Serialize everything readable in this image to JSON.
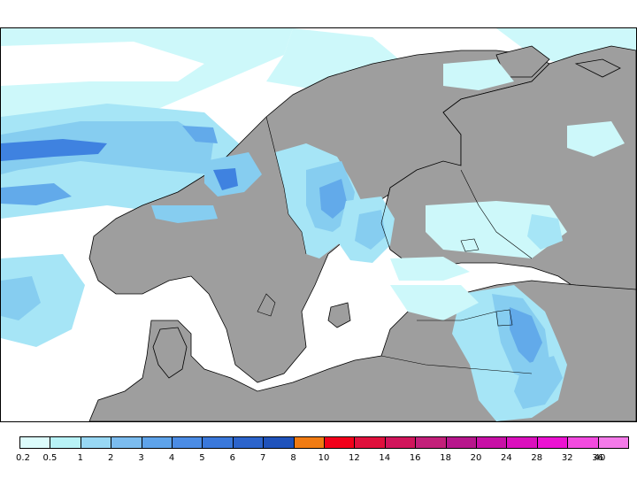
{
  "colors": {
    "land": "#9e9e9e",
    "sea": "#ffffff",
    "coast": "#000000",
    "precip_light": "#cdf8fa",
    "precip_1": "#a6e5f6",
    "precip_2": "#86cdf0",
    "precip_3": "#62aaea",
    "precip_5": "#3f82e0",
    "precip_7": "#1e5fc9"
  },
  "legend": {
    "colors": [
      "#dcfcfc",
      "#b8f3f7",
      "#98d8f4",
      "#7bbcef",
      "#5ea3ea",
      "#4b8ce5",
      "#3a78db",
      "#2c64cc",
      "#1f52bb",
      "#f07b12",
      "#f2001a",
      "#e0103c",
      "#d1155b",
      "#c3207a",
      "#b7168c",
      "#c810a6",
      "#db10bd",
      "#ec12d2",
      "#f34be0",
      "#f47ae9"
    ],
    "labels": [
      "0.2",
      "0.5",
      "1",
      "2",
      "3",
      "4",
      "5",
      "6",
      "7",
      "8",
      "10",
      "12",
      "14",
      "16",
      "18",
      "20",
      "24",
      "28",
      "32",
      "36",
      "40"
    ]
  }
}
